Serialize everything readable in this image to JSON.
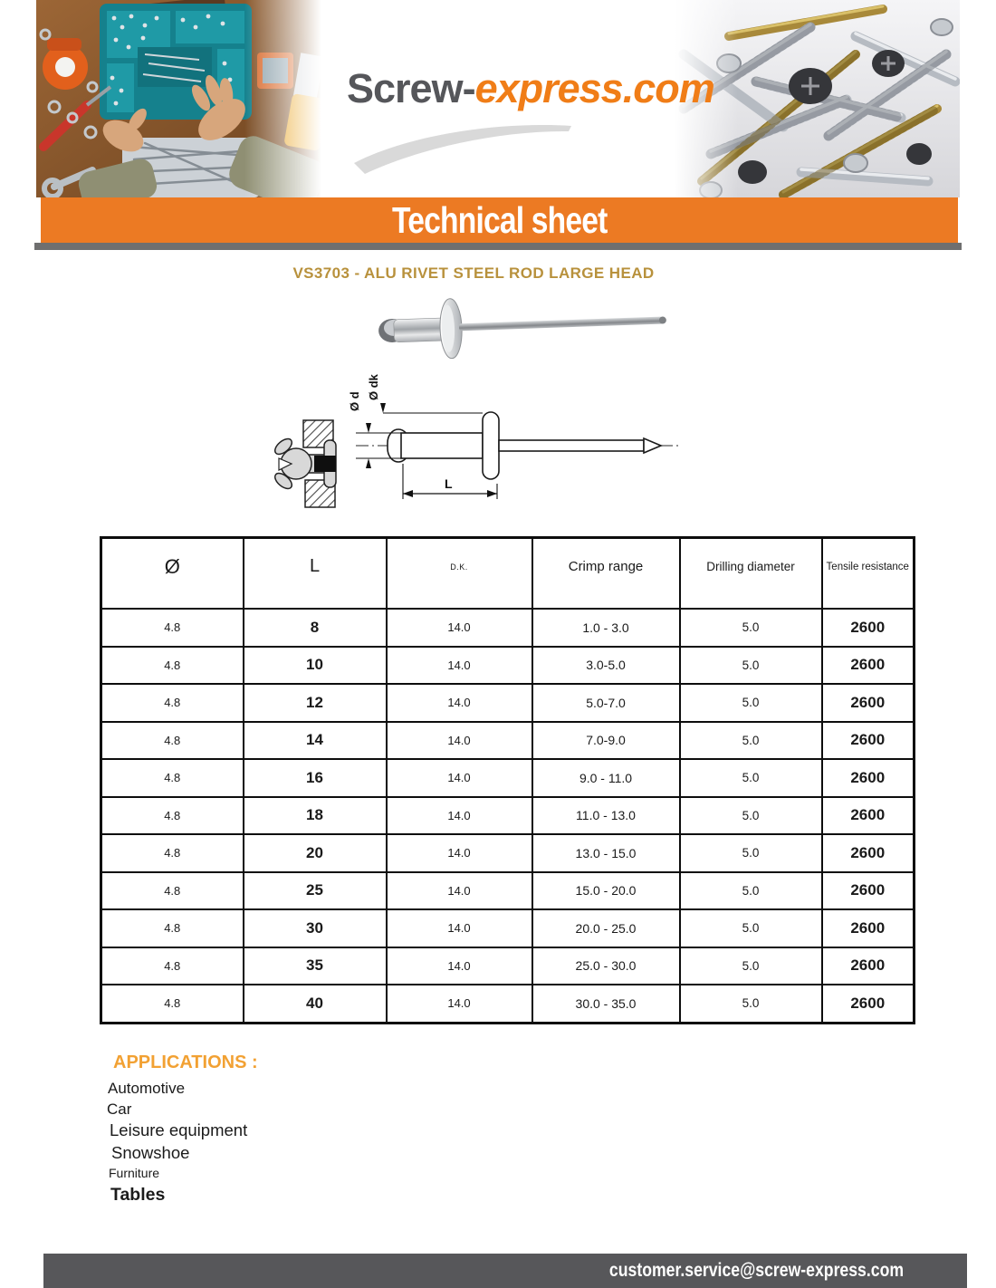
{
  "logo": {
    "prefix": "Screw-",
    "suffix": "express.com"
  },
  "banner": {
    "title": "Technical sheet"
  },
  "product": {
    "title": "VS3703 - ALU RIVET STEEL ROD LARGE HEAD"
  },
  "diagram": {
    "labels": {
      "head_diameter": "Ø dk",
      "body_diameter": "Ø d",
      "length": "L"
    }
  },
  "table": {
    "headers": [
      "Ø",
      "L",
      "D.K.",
      "Crimp range",
      "Drilling diameter",
      "Tensile resistance"
    ],
    "rows": [
      [
        "4.8",
        "8",
        "14.0",
        "1.0 - 3.0",
        "5.0",
        "2600"
      ],
      [
        "4.8",
        "10",
        "14.0",
        "3.0-5.0",
        "5.0",
        "2600"
      ],
      [
        "4.8",
        "12",
        "14.0",
        "5.0-7.0",
        "5.0",
        "2600"
      ],
      [
        "4.8",
        "14",
        "14.0",
        "7.0-9.0",
        "5.0",
        "2600"
      ],
      [
        "4.8",
        "16",
        "14.0",
        "9.0 - 11.0",
        "5.0",
        "2600"
      ],
      [
        "4.8",
        "18",
        "14.0",
        "11.0 - 13.0",
        "5.0",
        "2600"
      ],
      [
        "4.8",
        "20",
        "14.0",
        "13.0 - 15.0",
        "5.0",
        "2600"
      ],
      [
        "4.8",
        "25",
        "14.0",
        "15.0 - 20.0",
        "5.0",
        "2600"
      ],
      [
        "4.8",
        "30",
        "14.0",
        "20.0 - 25.0",
        "5.0",
        "2600"
      ],
      [
        "4.8",
        "35",
        "14.0",
        "25.0 - 30.0",
        "5.0",
        "2600"
      ],
      [
        "4.8",
        "40",
        "14.0",
        "30.0 - 35.0",
        "5.0",
        "2600"
      ]
    ]
  },
  "applications": {
    "heading": "APPLICATIONS :",
    "items": [
      "Automotive",
      "Car",
      "Leisure equipment",
      "Snowshoe",
      "Furniture",
      "Tables"
    ]
  },
  "footer": {
    "email": "customer.service@screw-express.com"
  },
  "colors": {
    "banner_orange": "#ec7a23",
    "logo_orange": "#f07d17",
    "title_gold": "#b8913c",
    "applications_orange": "#f2a133",
    "footer_gray": "#57575a"
  }
}
